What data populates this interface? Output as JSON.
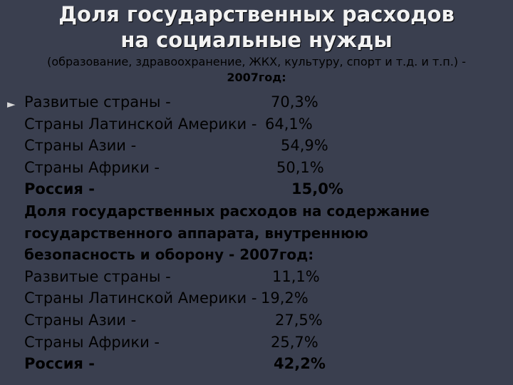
{
  "title": {
    "line1": "Доля государственных расходов",
    "line2": "на социальные нужды"
  },
  "subtitle": {
    "line1": "(образование, здравоохранение, ЖКХ, культуру, спорт и т.д. и т.п.) -",
    "line2": "2007год:"
  },
  "bullet_glyph": "►",
  "section1": [
    {
      "label": "Развитые страны -",
      "value": "70,3%"
    },
    {
      "label": "Страны Латинской Америки -",
      "value": "64,1%"
    },
    {
      "label": "Страны Азии -",
      "value": "54,9%"
    },
    {
      "label": "Страны Африки -",
      "value": "50,1%"
    },
    {
      "label": "Россия -",
      "value": "15,0%"
    }
  ],
  "section2_heading": {
    "line1": "Доля государственных расходов на содержание",
    "line2": "государственного аппарата, внутреннюю",
    "line3": "безопасность и оборону - 2007год:"
  },
  "section2": [
    {
      "label": "Развитые страны -",
      "value": "11,1%"
    },
    {
      "label": "Страны Латинской Америки -",
      "value": "19,2%"
    },
    {
      "label": "Страны Азии -",
      "value": "27,5%"
    },
    {
      "label": "Страны Африки -",
      "value": "25,7%"
    },
    {
      "label": "Россия -",
      "value": "42,2%"
    }
  ]
}
